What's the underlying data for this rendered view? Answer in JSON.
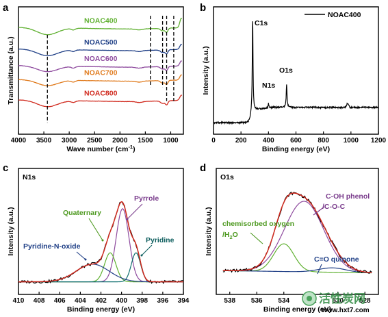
{
  "chart_data": [
    {
      "panel": "a",
      "type": "line",
      "xlabel": "Wave number (cm",
      "xlabel_sup": "-1",
      "xlabel_end": ")",
      "ylabel": "Transmittance (a.u.)",
      "xlim": [
        4000,
        750
      ],
      "xticks": [
        4000,
        3500,
        3000,
        2500,
        2000,
        1500,
        1000
      ],
      "reference_lines": [
        3430,
        1400,
        1160,
        1080,
        940
      ],
      "series": [
        {
          "name": "NOAC400",
          "color": "#5fb030",
          "offset": 0.83
        },
        {
          "name": "NOAC500",
          "color": "#1f3f86",
          "offset": 0.66
        },
        {
          "name": "NOAC600",
          "color": "#8e4a9e",
          "offset": 0.53
        },
        {
          "name": "NOAC700",
          "color": "#e07a1c",
          "offset": 0.42
        },
        {
          "name": "NOAC800",
          "color": "#d0281c",
          "offset": 0.26
        }
      ]
    },
    {
      "panel": "b",
      "type": "line",
      "xlabel": "Binding energy (eV)",
      "ylabel": "Intensity (a.u.)",
      "xlim": [
        0,
        1200
      ],
      "xticks": [
        0,
        200,
        400,
        600,
        800,
        1000,
        1200
      ],
      "legend": "NOAC400",
      "legend_position": "top-right",
      "peaks": [
        {
          "label": "C1s",
          "x": 284.8
        },
        {
          "label": "N1s",
          "x": 400
        },
        {
          "label": "O1s",
          "x": 532
        }
      ]
    },
    {
      "panel": "c",
      "title": "N1s",
      "type": "line",
      "xlabel": "Binding energy (eV)",
      "ylabel": "Intensity (a.u.)",
      "xlim": [
        410,
        394
      ],
      "xticks": [
        410,
        408,
        406,
        404,
        402,
        400,
        398,
        396,
        394
      ],
      "components": [
        {
          "label": "Pyrrole",
          "center": 399.9,
          "color": "#8e4a9e",
          "label_color": "#7a3c8c"
        },
        {
          "label": "Quaternary",
          "center": 401.1,
          "color": "#5fb030",
          "label_color": "#4f9a22"
        },
        {
          "label": "Pyridine",
          "center": 398.6,
          "color": "#0e6e6e",
          "label_color": "#0e5e5e"
        },
        {
          "label": "Pyridine-N-oxide",
          "center": 402.8,
          "color": "#1f3f86",
          "label_color": "#1f3f86"
        }
      ]
    },
    {
      "panel": "d",
      "title": "O1s",
      "type": "line",
      "xlabel": "Binding energy (eV)",
      "ylabel": "Intensity (a.u.)",
      "xlim": [
        539,
        527
      ],
      "xticks": [
        538,
        536,
        534,
        532,
        530,
        528
      ],
      "components": [
        {
          "label": "C-OH phenol",
          "label2": "/C-O-C",
          "center": 532.5,
          "color": "#8e4a9e",
          "label_color": "#7a3c8c"
        },
        {
          "label": "chemisorbed oxygen",
          "label2": "/H",
          "label2_sub": "2",
          "label2_end": "O",
          "center": 534.0,
          "color": "#5fb030",
          "label_color": "#4f9a22"
        },
        {
          "label": "C=O quinone",
          "center": 530.4,
          "color": "#1f3f86",
          "label_color": "#1f3f86"
        }
      ]
    }
  ],
  "watermark": {
    "text": "活性炭网",
    "url": "www.hxt7.com"
  }
}
